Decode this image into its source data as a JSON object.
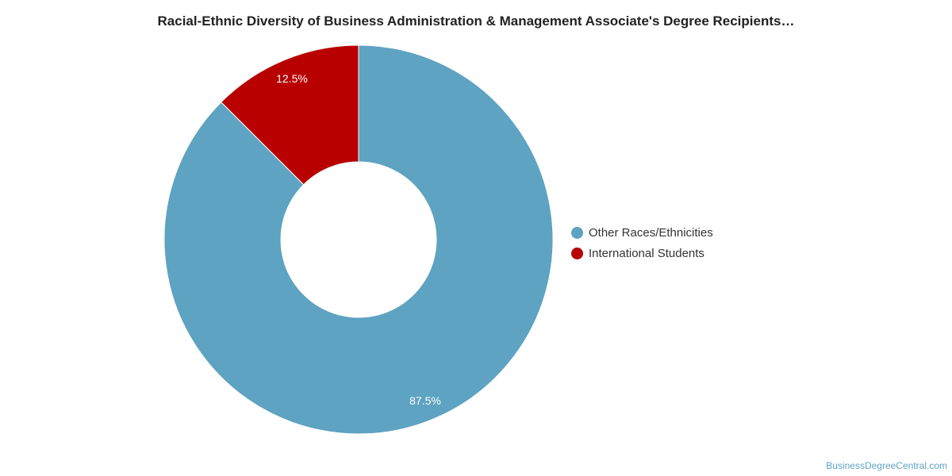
{
  "chart_data": {
    "type": "pie",
    "donut": true,
    "title": "Racial-Ethnic Diversity of Business Administration & Management Associate's Degree Recipients…",
    "slices": [
      {
        "name": "Other Races/Ethnicities",
        "value": 87.5,
        "label": "87.5%",
        "color": "#5ea3c1"
      },
      {
        "name": "International Students",
        "value": 12.5,
        "label": "12.5%",
        "color": "#b80000"
      }
    ],
    "legend_position": "right"
  },
  "watermark": "BusinessDegreeCentral.com"
}
